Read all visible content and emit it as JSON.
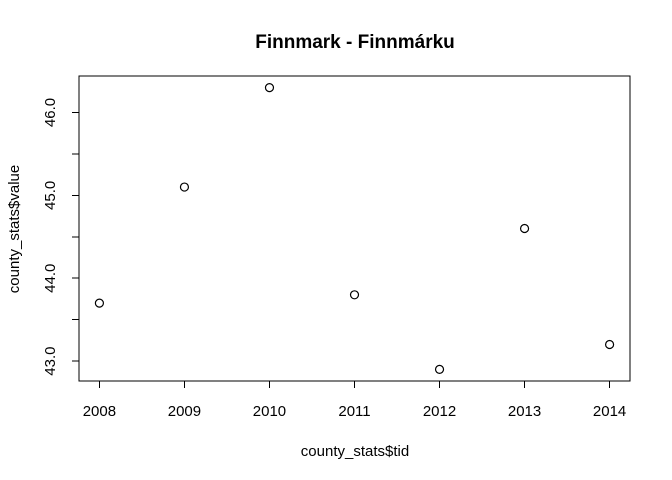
{
  "chart_data": {
    "type": "scatter",
    "title": "Finnmark - Finnmárku",
    "xlabel": "county_stats$tid",
    "ylabel": "county_stats$value",
    "x": [
      2008,
      2009,
      2010,
      2011,
      2012,
      2013,
      2014
    ],
    "y": [
      43.7,
      45.1,
      46.3,
      43.8,
      42.9,
      44.6,
      43.2
    ],
    "xlim": [
      2007.76,
      2014.24
    ],
    "ylim": [
      42.76,
      46.44
    ],
    "x_ticks": [
      2008,
      2009,
      2010,
      2011,
      2012,
      2013,
      2014
    ],
    "x_tick_labels": [
      "2008",
      "2009",
      "2010",
      "2011",
      "2012",
      "2013",
      "2014"
    ],
    "y_ticks": [
      43.0,
      43.5,
      44.0,
      44.5,
      45.0,
      45.5,
      46.0
    ],
    "y_tick_labels": [
      "43.0",
      "",
      "44.0",
      "",
      "45.0",
      "",
      "46.0"
    ],
    "grid": false,
    "legend": false,
    "marker": "open-circle",
    "colors": {
      "points": "#000000",
      "axes": "#000000",
      "background": "#ffffff"
    }
  }
}
